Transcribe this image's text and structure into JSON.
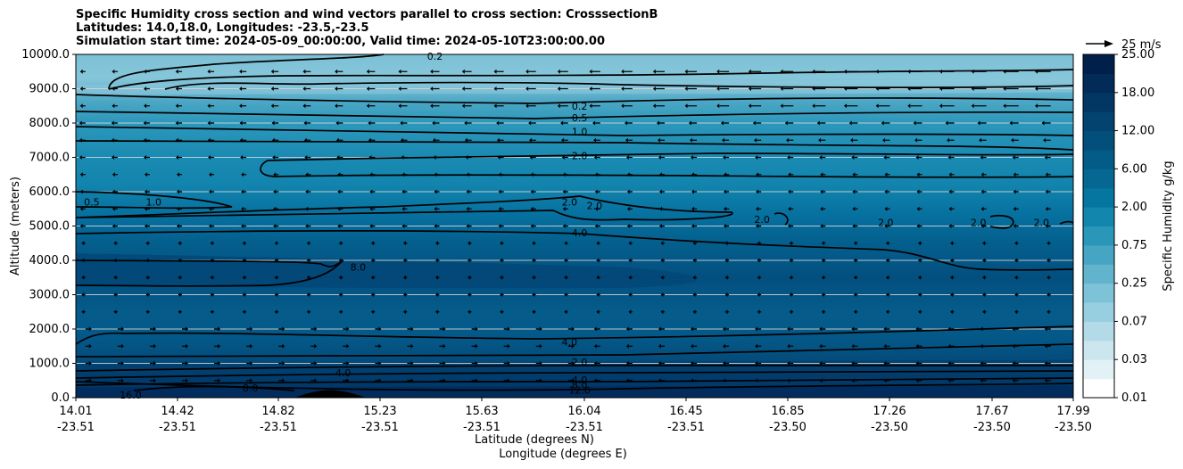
{
  "chart_data": {
    "type": "contour",
    "title_lines": [
      "Specific Humidity cross section and wind vectors parallel to cross section: CrosssectionB",
      "Latitudes: 14.0,18.0, Longitudes: -23.5,-23.5",
      "Simulation start time: 2024-05-09_00:00:00, Valid time: 2024-05-10T23:00:00.00"
    ],
    "ylabel": "Altitude (meters)",
    "xlabel_lines": [
      "Latitude (degrees N)",
      "Longitude (degrees E)"
    ],
    "ylim": [
      0,
      10000
    ],
    "y_ticks": [
      {
        "value": 0,
        "label": "0.0"
      },
      {
        "value": 1000,
        "label": "1000.0"
      },
      {
        "value": 2000,
        "label": "2000.0"
      },
      {
        "value": 3000,
        "label": "3000.0"
      },
      {
        "value": 4000,
        "label": "4000.0"
      },
      {
        "value": 5000,
        "label": "5000.0"
      },
      {
        "value": 6000,
        "label": "6000.0"
      },
      {
        "value": 7000,
        "label": "7000.0"
      },
      {
        "value": 8000,
        "label": "8000.0"
      },
      {
        "value": 9000,
        "label": "9000.0"
      },
      {
        "value": 10000,
        "label": "10000.0"
      }
    ],
    "x_ticks": [
      {
        "lat": "14.01",
        "lon": "-23.51"
      },
      {
        "lat": "14.42",
        "lon": "-23.51"
      },
      {
        "lat": "14.82",
        "lon": "-23.51"
      },
      {
        "lat": "15.23",
        "lon": "-23.51"
      },
      {
        "lat": "15.63",
        "lon": "-23.51"
      },
      {
        "lat": "16.04",
        "lon": "-23.51"
      },
      {
        "lat": "16.45",
        "lon": "-23.51"
      },
      {
        "lat": "16.85",
        "lon": "-23.50"
      },
      {
        "lat": "17.26",
        "lon": "-23.50"
      },
      {
        "lat": "17.67",
        "lon": "-23.50"
      },
      {
        "lat": "17.99",
        "lon": "-23.50"
      }
    ],
    "colorbar": {
      "label": "Specific Humidity g/kg",
      "tick_labels": [
        "0.01",
        "0.03",
        "0.07",
        "0.25",
        "0.75",
        "2.00",
        "6.00",
        "12.00",
        "18.00",
        "25.00"
      ],
      "colors": [
        "#ffffff",
        "#e2f1f5",
        "#cbe6ee",
        "#b3dbe7",
        "#98cfe0",
        "#7dc2d7",
        "#62b4cd",
        "#46a5c3",
        "#2a96b8",
        "#1386ad",
        "#04769f",
        "#046893",
        "#035b87",
        "#034f7b",
        "#03436f",
        "#023763",
        "#022b57",
        "#011f4b"
      ]
    },
    "quiver_key": {
      "label": "25 m/s"
    },
    "contour_labels": [
      {
        "text": "0.2",
        "x": 0.36,
        "alt": 9950
      },
      {
        "text": "0.2",
        "x": 0.505,
        "alt": 8500
      },
      {
        "text": "0.5",
        "x": 0.505,
        "alt": 8150
      },
      {
        "text": "1.0",
        "x": 0.505,
        "alt": 7750
      },
      {
        "text": "2.0",
        "x": 0.505,
        "alt": 7050
      },
      {
        "text": "0.5",
        "x": 0.016,
        "alt": 5700
      },
      {
        "text": "1.0",
        "x": 0.078,
        "alt": 5700
      },
      {
        "text": "2.0",
        "x": 0.495,
        "alt": 5700
      },
      {
        "text": "2.0",
        "x": 0.52,
        "alt": 5600
      },
      {
        "text": "2.0",
        "x": 0.688,
        "alt": 5200
      },
      {
        "text": "2.0",
        "x": 0.812,
        "alt": 5100
      },
      {
        "text": "2.0",
        "x": 0.905,
        "alt": 5100
      },
      {
        "text": "2.0",
        "x": 0.968,
        "alt": 5100
      },
      {
        "text": "4.0",
        "x": 0.505,
        "alt": 4800
      },
      {
        "text": "8.0",
        "x": 0.283,
        "alt": 3800
      },
      {
        "text": "4.0",
        "x": 0.495,
        "alt": 1620
      },
      {
        "text": "2.0",
        "x": 0.505,
        "alt": 1040
      },
      {
        "text": "4.0",
        "x": 0.268,
        "alt": 730
      },
      {
        "text": "8.0",
        "x": 0.175,
        "alt": 280
      },
      {
        "text": "4.0",
        "x": 0.505,
        "alt": 520
      },
      {
        "text": "8.0",
        "x": 0.505,
        "alt": 380
      },
      {
        "text": "12.0",
        "x": 0.505,
        "alt": 220
      },
      {
        "text": "16.0",
        "x": 0.055,
        "alt": 80
      }
    ]
  }
}
